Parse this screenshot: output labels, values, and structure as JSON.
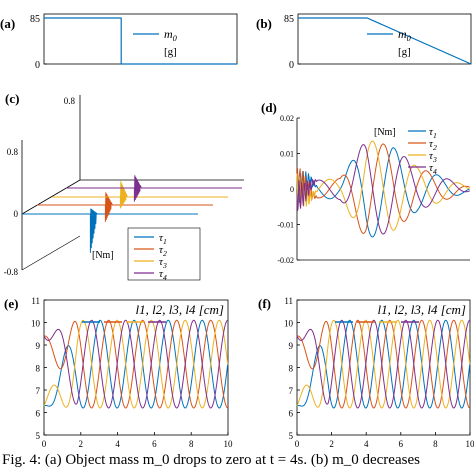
{
  "colors": {
    "tau1": "#0072BD",
    "tau2": "#D95319",
    "tau3": "#EDB120",
    "tau4": "#7E2F8E",
    "axis": "#000000"
  },
  "chart_data": [
    {
      "panel": "(a)",
      "type": "line",
      "x": [
        0,
        4,
        4,
        10
      ],
      "series": [
        {
          "name": "m_0",
          "values": [
            85,
            85,
            0,
            0
          ]
        }
      ],
      "ylim": [
        0,
        85
      ],
      "yticks": [
        "0",
        "85"
      ],
      "legend_label": "m_0",
      "legend_unit": "[g]",
      "legend_position": "top-right"
    },
    {
      "panel": "(b)",
      "type": "line",
      "x": [
        0,
        4,
        10
      ],
      "series": [
        {
          "name": "m_0",
          "values": [
            85,
            85,
            0
          ]
        }
      ],
      "ylim": [
        0,
        85
      ],
      "yticks": [
        "0",
        "85"
      ],
      "legend_label": "m_0",
      "legend_unit": "[g]",
      "legend_position": "top-right"
    },
    {
      "panel": "(c)",
      "type": "line",
      "view": "3d-waterfall",
      "yticks": [
        "-0.8",
        "0",
        "0.8"
      ],
      "ztick": "0.8",
      "spikes": [
        {
          "name": "τ1",
          "t": 4,
          "up": 0.05,
          "down": -0.35
        },
        {
          "name": "τ2",
          "t": 4,
          "up": 0.12,
          "down": -0.15
        },
        {
          "name": "τ3",
          "t": 4,
          "up": 0.15,
          "down": -0.1
        },
        {
          "name": "τ4",
          "t": 4,
          "up": 0.12,
          "down": -0.12
        }
      ],
      "legend_unit": "[Nm]",
      "legend": [
        "τ1",
        "τ2",
        "τ3",
        "τ4"
      ],
      "legend_position": "bottom-right"
    },
    {
      "panel": "(d)",
      "type": "line",
      "x_range": [
        0,
        10
      ],
      "ylim": [
        -0.02,
        0.02
      ],
      "yticks": [
        "0.02",
        "0.01",
        "0",
        "-0.01",
        "-0.02"
      ],
      "amplitude_envelope": [
        [
          0,
          0.002
        ],
        [
          2.5,
          0.003
        ],
        [
          4,
          0.014
        ],
        [
          5.5,
          0.012
        ],
        [
          7,
          0.006
        ],
        [
          10,
          0.0005
        ]
      ],
      "period": 2.5,
      "legend_unit": "[Nm]",
      "legend": [
        "τ1",
        "τ2",
        "τ3",
        "τ4"
      ],
      "legend_position": "top-right"
    },
    {
      "panel": "(e)",
      "type": "line",
      "x_range": [
        0,
        10
      ],
      "xticks": [
        "0",
        "2",
        "4",
        "6",
        "8",
        "10"
      ],
      "ylim": [
        5,
        11
      ],
      "yticks": [
        "5",
        "6",
        "7",
        "8",
        "9",
        "10",
        "11"
      ],
      "legend_label": "l1, l2, l3, l4 [cm]",
      "legend": [
        "l1",
        "l2",
        "l3",
        "l4"
      ],
      "initial_values": [
        6.3,
        9.4,
        6.3,
        9.4
      ],
      "settled_range": [
        6.2,
        10.1
      ],
      "period": 1.85
    },
    {
      "panel": "(f)",
      "type": "line",
      "x_range": [
        0,
        10
      ],
      "xticks": [
        "0",
        "2",
        "4",
        "6",
        "8",
        "10"
      ],
      "ylim": [
        5,
        11
      ],
      "yticks": [
        "5",
        "6",
        "7",
        "8",
        "9",
        "10",
        "11"
      ],
      "legend_label": "l1, l2, l3, l4 [cm]",
      "legend": [
        "l1",
        "l2",
        "l3",
        "l4"
      ],
      "initial_values": [
        6.3,
        9.4,
        6.3,
        9.4
      ],
      "settled_range": [
        6.2,
        10.1
      ],
      "period": 1.85
    }
  ],
  "caption": "Fig. 4: (a) Object mass m_0 drops to zero at t = 4s. (b) m_0 decreases"
}
